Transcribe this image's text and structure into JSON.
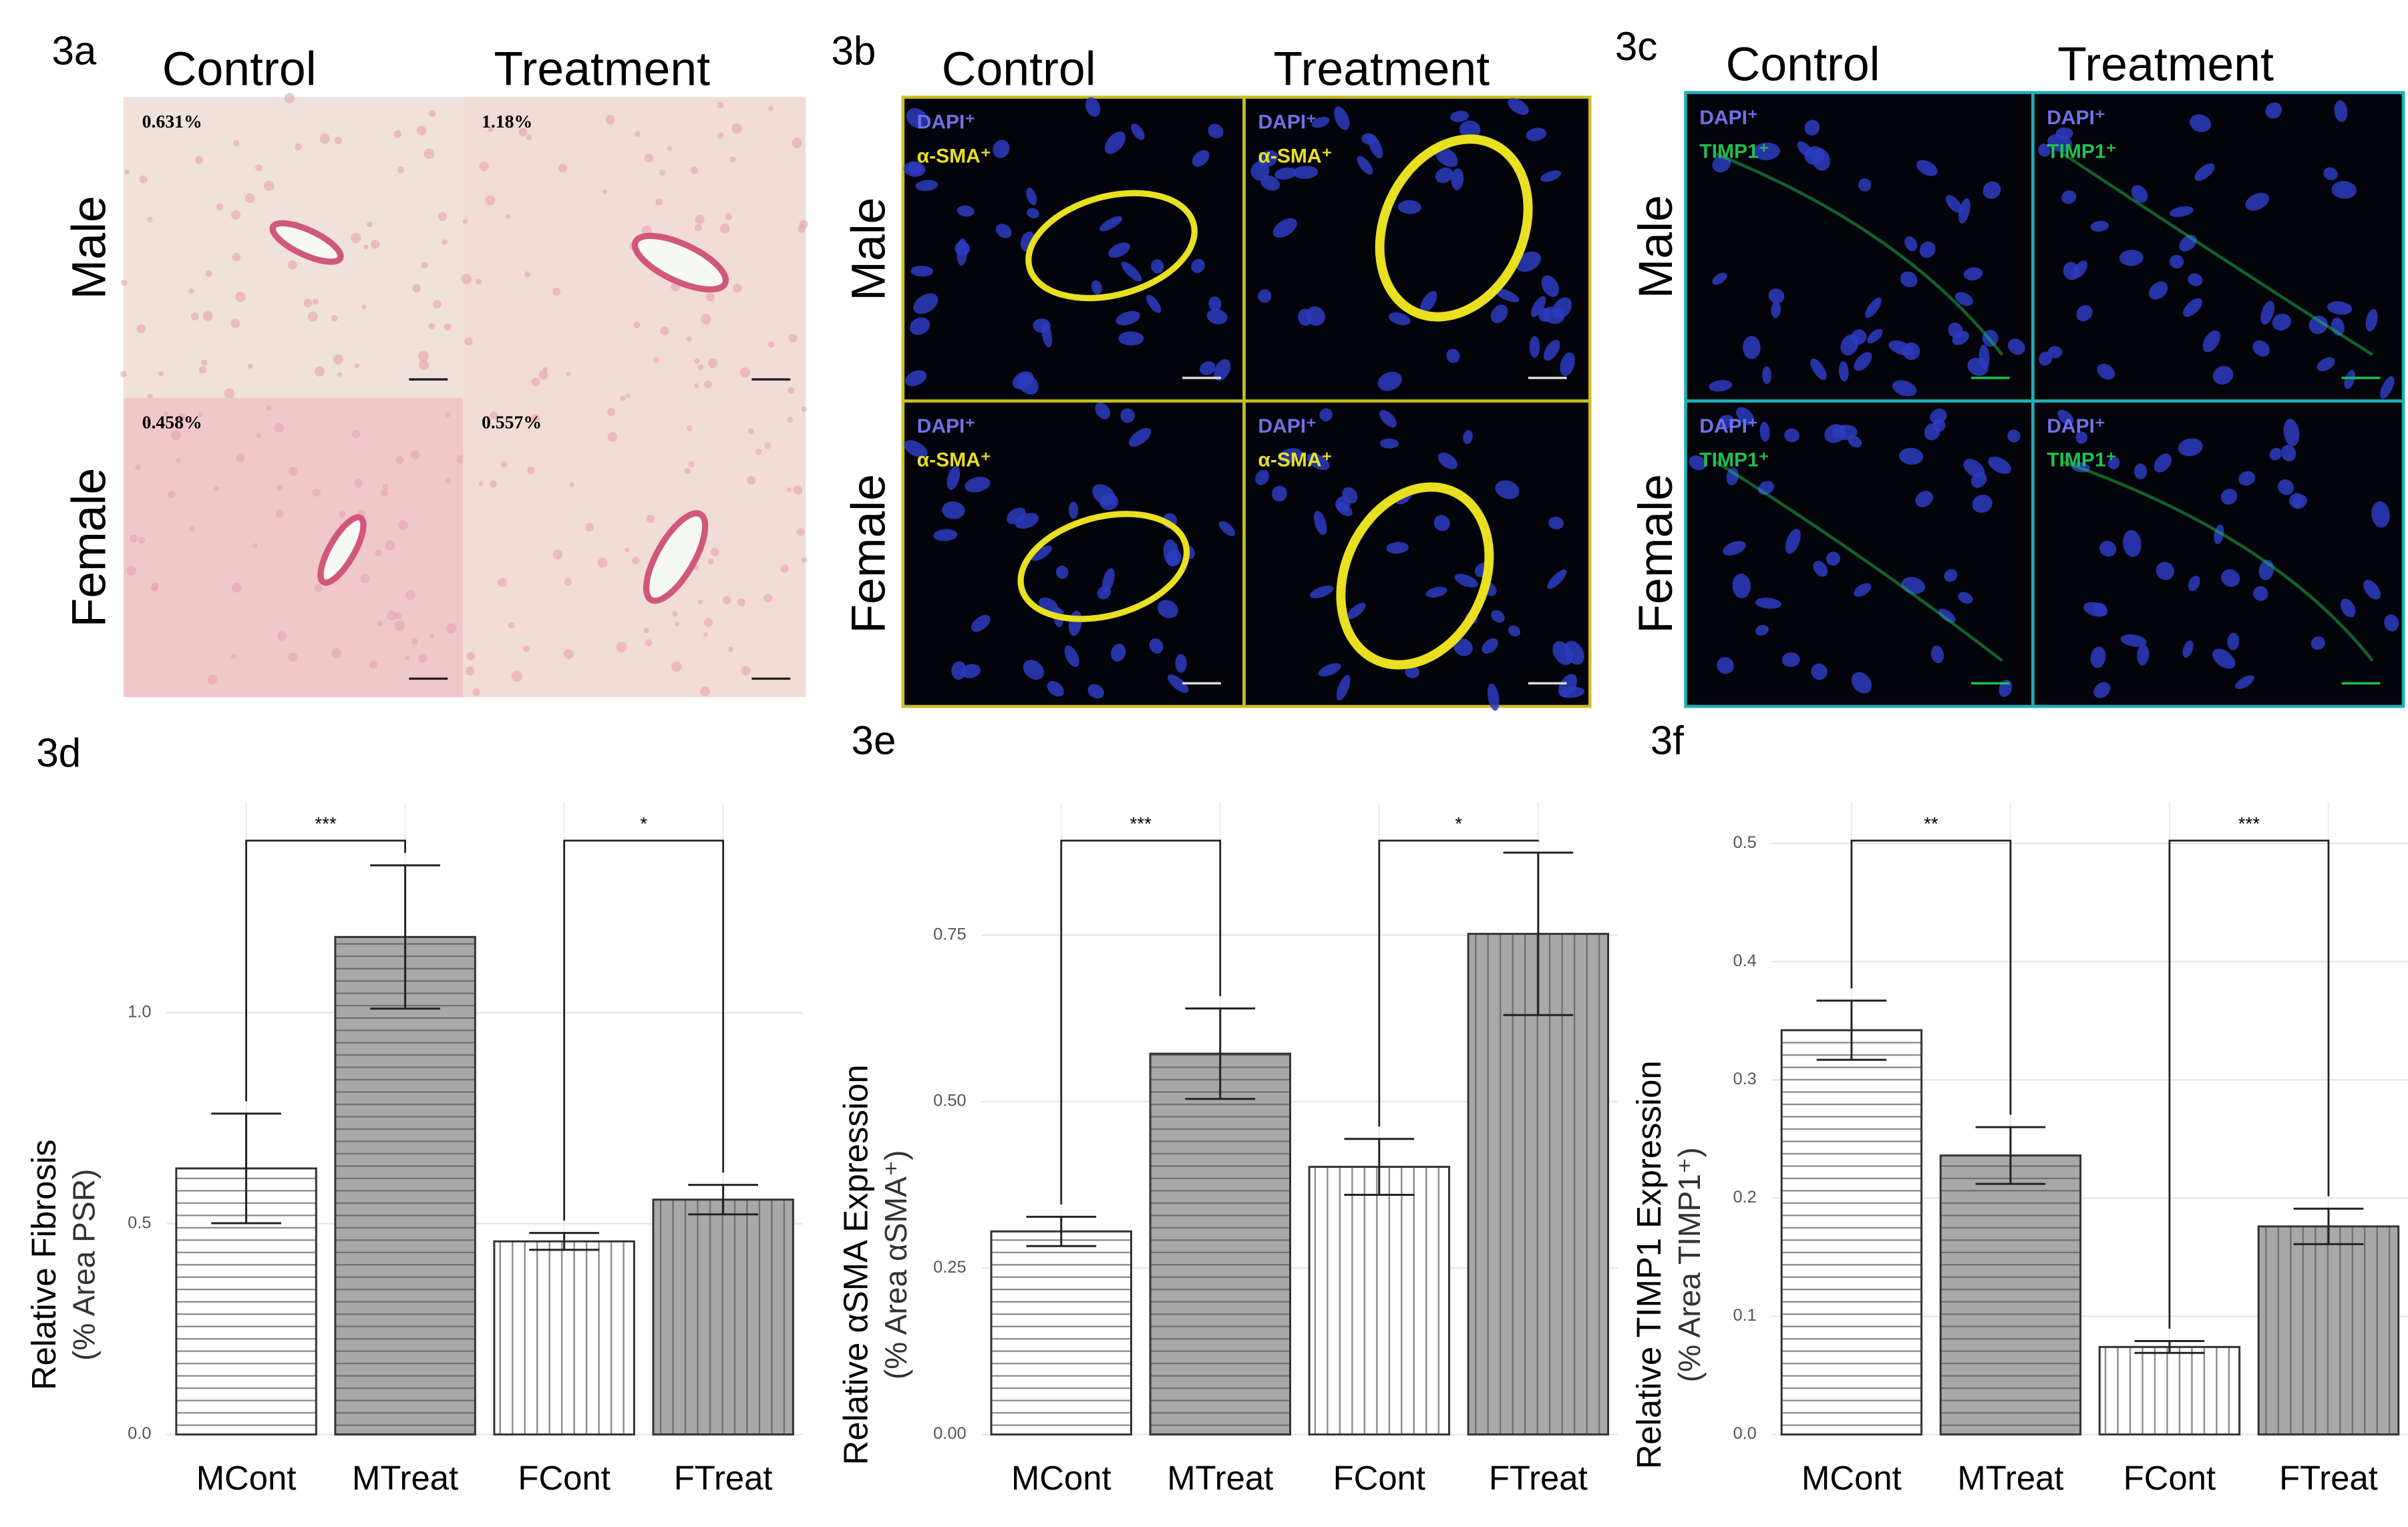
{
  "panels": [
    {
      "label": "3a",
      "columns": [
        "Control",
        "Treatment"
      ],
      "rows": [
        "Male",
        "Female"
      ],
      "annotations": [
        [
          "0.631%",
          "1.18%"
        ],
        [
          "0.458%",
          "0.557%"
        ]
      ]
    },
    {
      "label": "3b",
      "columns": [
        "Control",
        "Treatment"
      ],
      "rows": [
        "Male",
        "Female"
      ],
      "stains": [
        "DAPI⁺",
        "α-SMA⁺"
      ],
      "stain_colors": [
        "#7070e8",
        "#e8e020"
      ],
      "border": "#c8c020"
    },
    {
      "label": "3c",
      "columns": [
        "Control",
        "Treatment"
      ],
      "rows": [
        "Male",
        "Female"
      ],
      "stains": [
        "DAPI⁺",
        "TIMP1⁺"
      ],
      "stain_colors": [
        "#7070e8",
        "#20c050"
      ],
      "border": "#20b0b8"
    }
  ],
  "chart_data": [
    {
      "type": "bar",
      "panel_label": "3d",
      "y_label": "Relative Fibrosis",
      "y_sublabel": "(% Area PSR)",
      "categories": [
        "MCont",
        "MTreat",
        "FCont",
        "FTreat"
      ],
      "values": [
        0.631,
        1.18,
        0.458,
        0.557
      ],
      "errors": [
        0.13,
        0.17,
        0.02,
        0.035
      ],
      "colors": [
        "#ffffff",
        "#a8a8a8",
        "#ffffff",
        "#a8a8a8"
      ],
      "hatch": [
        "horizontal",
        "horizontal",
        "vertical",
        "vertical"
      ],
      "ylim": [
        0,
        1.5
      ],
      "yticks": [
        {
          "value": 0,
          "label": "0.0"
        },
        {
          "value": 0.5,
          "label": "0.5"
        },
        {
          "value": 1,
          "label": "1.0"
        }
      ],
      "grid": true,
      "significance": [
        {
          "from": 0,
          "to": 1,
          "label": "***"
        },
        {
          "from": 2,
          "to": 3,
          "label": "*"
        }
      ]
    },
    {
      "type": "bar",
      "panel_label": "3e",
      "y_label": "Relative αSMA Expression",
      "y_sublabel": "(% Area αSMA⁺)",
      "categories": [
        "MCont",
        "MTreat",
        "FCont",
        "FTreat"
      ],
      "values": [
        0.305,
        0.572,
        0.402,
        0.752
      ],
      "errors": [
        0.022,
        0.068,
        0.042,
        0.122
      ],
      "colors": [
        "#ffffff",
        "#a8a8a8",
        "#ffffff",
        "#a8a8a8"
      ],
      "hatch": [
        "horizontal",
        "horizontal",
        "vertical",
        "vertical"
      ],
      "ylim": [
        0,
        0.95
      ],
      "yticks": [
        {
          "value": 0,
          "label": "0.00"
        },
        {
          "value": 0.25,
          "label": "0.25"
        },
        {
          "value": 0.5,
          "label": "0.50"
        },
        {
          "value": 0.75,
          "label": "0.75"
        }
      ],
      "grid": true,
      "significance": [
        {
          "from": 0,
          "to": 1,
          "label": "***"
        },
        {
          "from": 2,
          "to": 3,
          "label": "*"
        }
      ]
    },
    {
      "type": "bar",
      "panel_label": "3f",
      "y_label": "Relative TIMP1 Expression",
      "y_sublabel": "(% Area TIMP1⁺)",
      "categories": [
        "MCont",
        "MTreat",
        "FCont",
        "FTreat"
      ],
      "values": [
        0.342,
        0.236,
        0.074,
        0.176
      ],
      "errors": [
        0.025,
        0.024,
        0.005,
        0.015
      ],
      "colors": [
        "#ffffff",
        "#a8a8a8",
        "#ffffff",
        "#a8a8a8"
      ],
      "hatch": [
        "horizontal",
        "horizontal",
        "vertical",
        "vertical"
      ],
      "ylim": [
        0,
        0.535
      ],
      "yticks": [
        {
          "value": 0,
          "label": "0.0"
        },
        {
          "value": 0.1,
          "label": "0.1"
        },
        {
          "value": 0.2,
          "label": "0.2"
        },
        {
          "value": 0.3,
          "label": "0.3"
        },
        {
          "value": 0.4,
          "label": "0.4"
        },
        {
          "value": 0.5,
          "label": "0.5"
        }
      ],
      "grid": true,
      "significance": [
        {
          "from": 0,
          "to": 1,
          "label": "**"
        },
        {
          "from": 2,
          "to": 3,
          "label": "***"
        }
      ]
    }
  ]
}
